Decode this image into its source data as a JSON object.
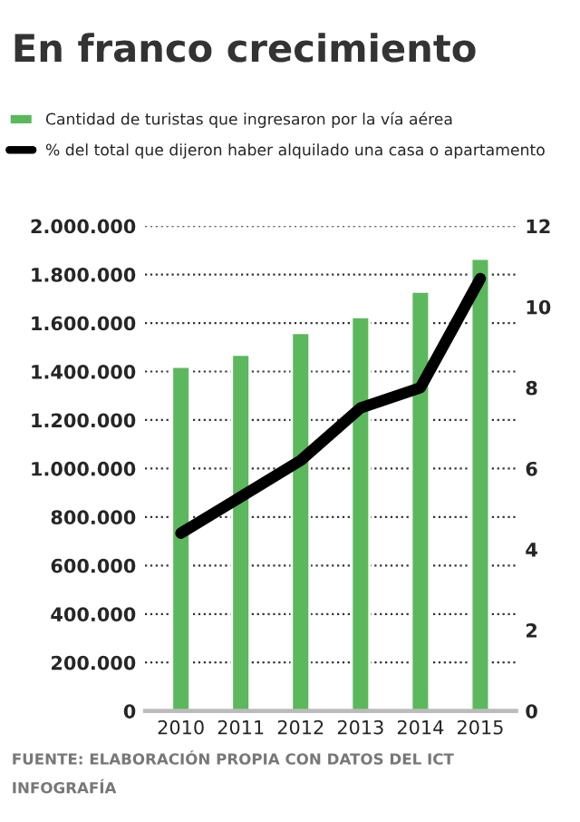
{
  "chart_data": {
    "type": "bar",
    "title": "En franco crecimiento",
    "categories": [
      "2010",
      "2011",
      "2012",
      "2013",
      "2014",
      "2015"
    ],
    "series": [
      {
        "name": "Cantidad de turistas que ingresaron por la vía aérea",
        "color": "#5cb85c",
        "values": [
          1420000,
          1470000,
          1560000,
          1625000,
          1730000,
          1865000
        ]
      },
      {
        "name": "% del total que dijeron haber alquilado una casa o apartamento",
        "type": "line",
        "axis": "y2",
        "color": "#000000",
        "values": [
          4.4,
          5.3,
          6.2,
          7.5,
          8.0,
          10.7
        ]
      }
    ],
    "ylim": [
      0,
      2000000
    ],
    "yticks": [
      0,
      {
        "value": 200000,
        "label": "200.000"
      },
      {
        "value": 400000,
        "label": "400.000"
      },
      {
        "value": 600000,
        "label": "600.000"
      },
      {
        "value": 800000,
        "label": "800.000"
      },
      {
        "value": 1000000,
        "label": "1.000.000"
      },
      {
        "value": 1200000,
        "label": "1.200.000"
      },
      {
        "value": 1400000,
        "label": "1.400.000"
      },
      {
        "value": 1600000,
        "label": "1.600.000"
      },
      {
        "value": 1800000,
        "label": "1.800.000"
      },
      {
        "value": 2000000,
        "label": "2.000.000"
      }
    ],
    "y2lim": [
      0,
      12
    ],
    "y2ticks": [
      0,
      2,
      4,
      6,
      8,
      10,
      12
    ],
    "grid": "y",
    "legend": "top",
    "marker": "none",
    "line_style": "solid",
    "annotations": [
      "FUENTE: ELABORACIÓN PROPIA CON DATOS DEL ICT",
      "INFOGRAFÍA"
    ]
  }
}
